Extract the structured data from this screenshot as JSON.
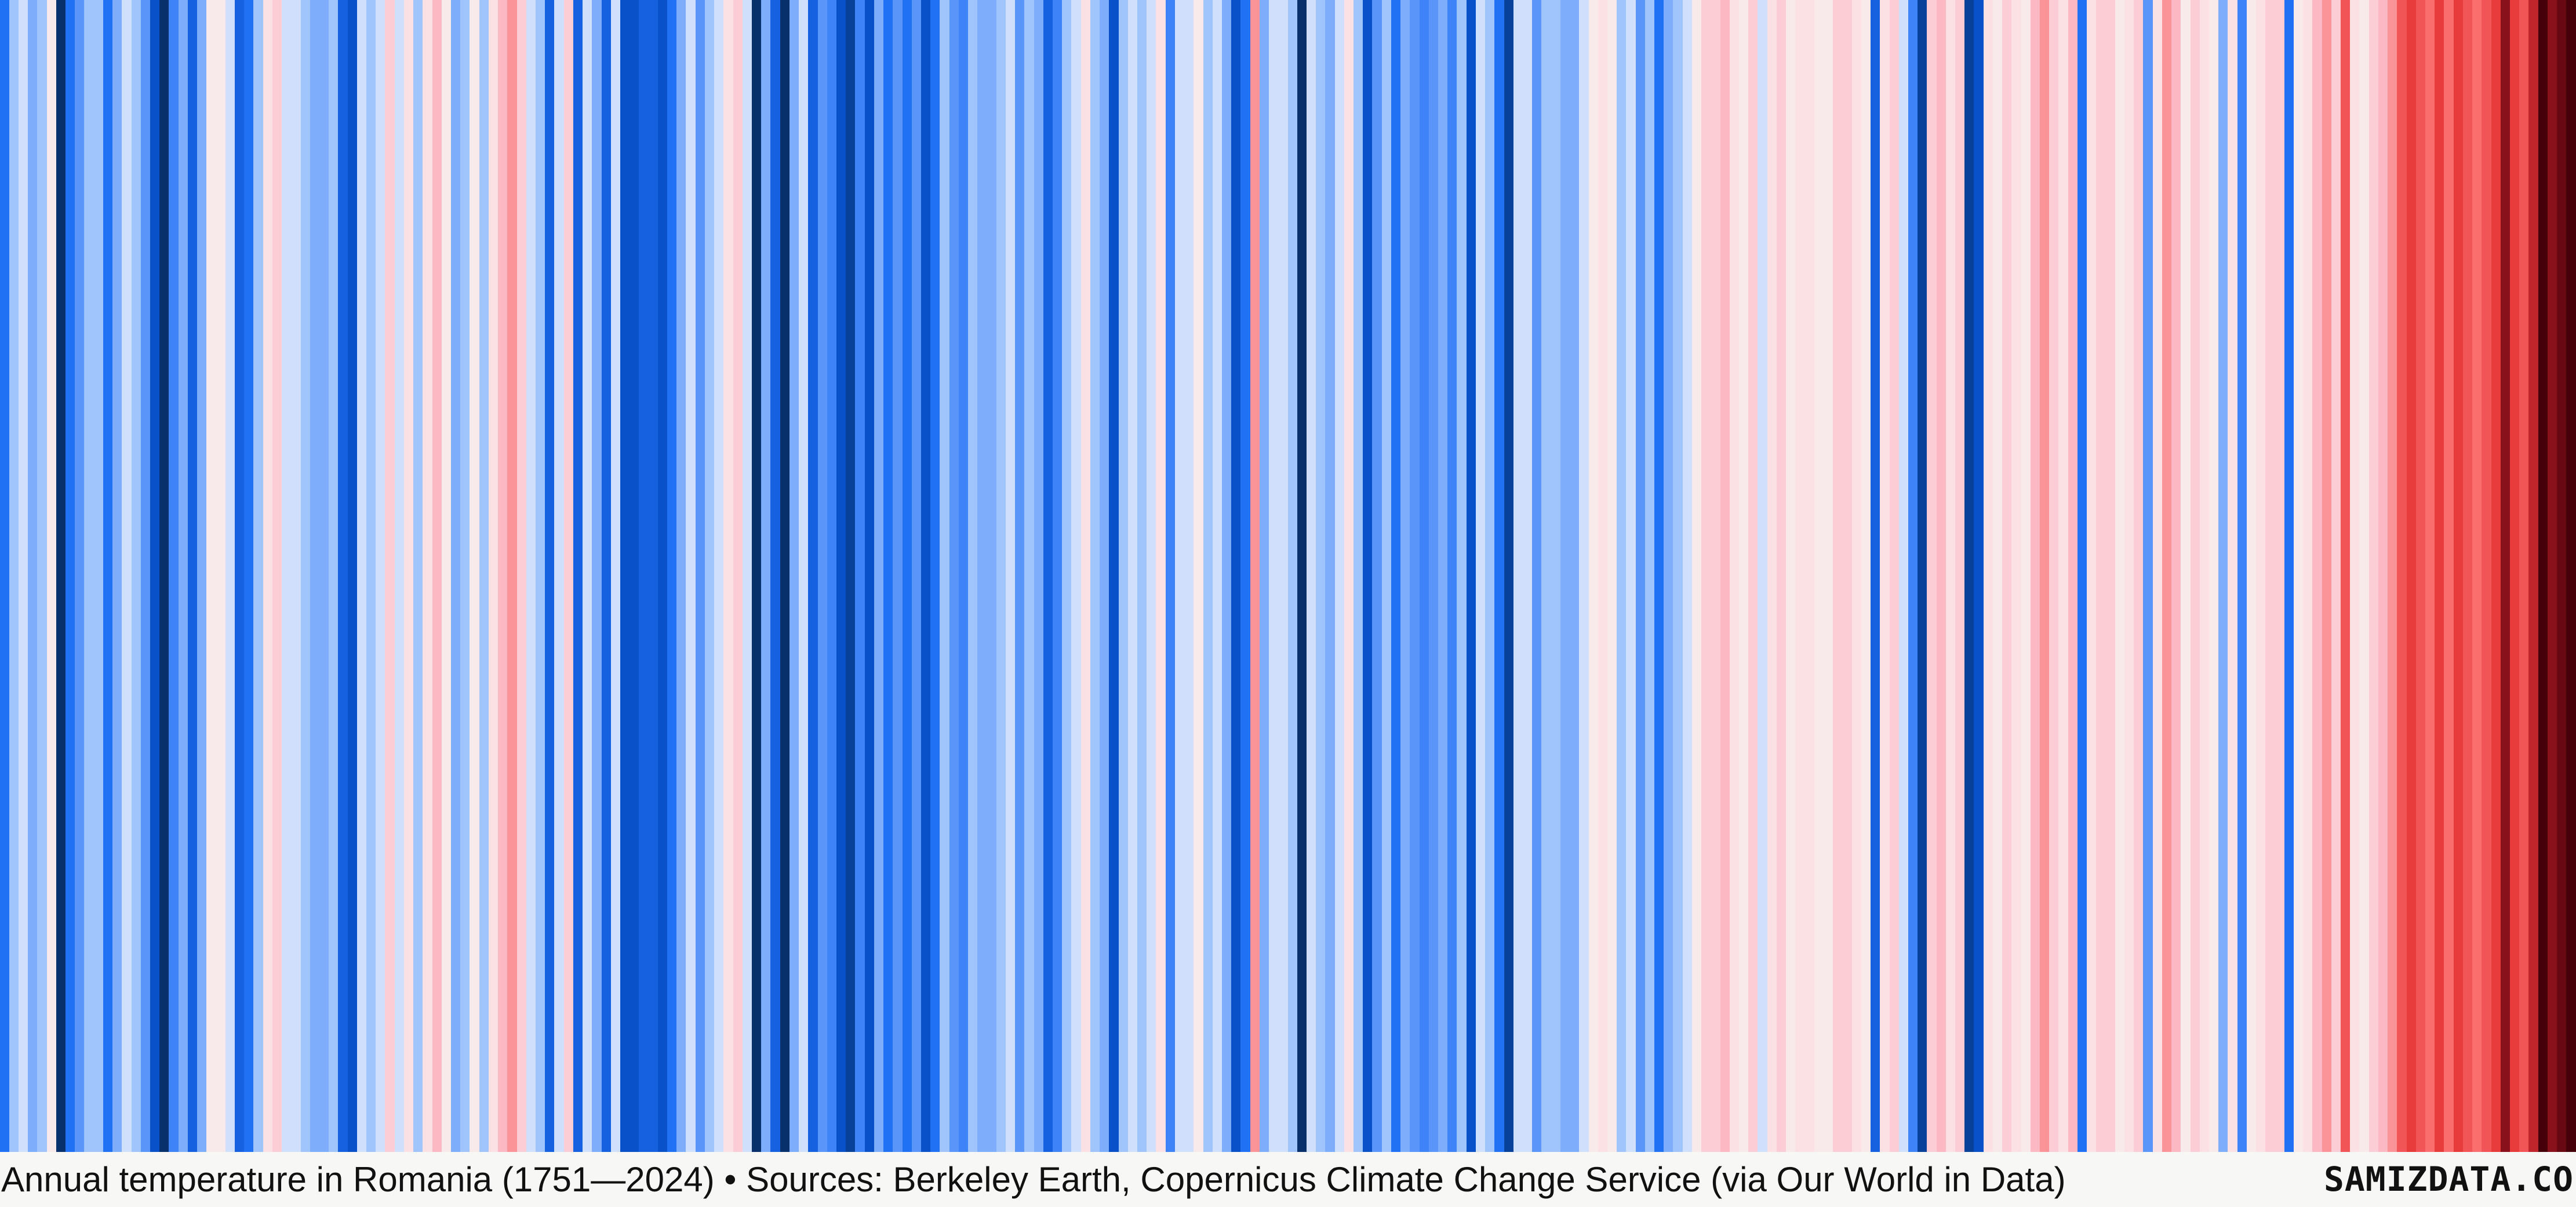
{
  "caption": {
    "text": "Annual temperature in Romania (1751—2024) • Sources: Berkeley Earth, Copernicus Climate Change Service (via Our World in Data)"
  },
  "brand": {
    "text": "SAMIZDATA.CO"
  },
  "colors": {
    "background": "#f7f7f5",
    "cold_extreme": "#08306b",
    "cold": "#2171f5",
    "neutral": "#f2f0f5",
    "warm": "#fc6b6b",
    "warm_extreme": "#67000d"
  },
  "chart_data": {
    "type": "heatmap",
    "start_year": 1751,
    "end_year": 2024,
    "value_semantics": "annual temperature anomaly, normalized from -1 (coldest) to +1 (warmest)",
    "values": [
      -0.6,
      -0.2,
      -0.1,
      -0.3,
      -0.2,
      0.05,
      -1.0,
      -0.6,
      -0.4,
      -0.2,
      -0.2,
      -0.6,
      -0.3,
      -0.1,
      -0.2,
      -0.4,
      -0.8,
      -1.0,
      -0.5,
      -0.3,
      -0.7,
      -0.3,
      0.05,
      0.05,
      -0.1,
      -0.7,
      -0.6,
      -0.2,
      0.1,
      0.2,
      -0.1,
      -0.1,
      -0.2,
      -0.3,
      -0.3,
      -0.2,
      -0.7,
      -0.8,
      -0.1,
      -0.2,
      -0.1,
      0.2,
      -0.1,
      0.1,
      -0.2,
      0.1,
      0.3,
      0.05,
      -0.3,
      -0.2,
      0.05,
      -0.2,
      0.1,
      0.3,
      0.4,
      0.2,
      -0.1,
      -0.2,
      -0.7,
      -0.1,
      0.2,
      -0.7,
      -0.1,
      -0.3,
      -0.7,
      -0.1,
      -0.8,
      -0.8,
      -0.7,
      -0.7,
      -0.8,
      -0.6,
      -0.3,
      -0.1,
      -0.4,
      -0.2,
      -0.1,
      0.1,
      0.2,
      -0.1,
      -1.0,
      -0.3,
      -0.7,
      -1.0,
      -0.3,
      -0.1,
      -0.7,
      -0.4,
      -0.5,
      -0.8,
      -0.9,
      -0.5,
      -0.8,
      -0.3,
      -0.6,
      -0.4,
      -0.6,
      -0.4,
      -0.8,
      -0.6,
      -0.2,
      -0.4,
      -0.5,
      -0.2,
      -0.3,
      -0.3,
      -0.2,
      -0.1,
      -0.4,
      -0.2,
      -0.3,
      -0.7,
      -0.5,
      -0.2,
      -0.1,
      0.1,
      -0.2,
      -0.3,
      -0.8,
      -0.2,
      -0.1,
      -0.2,
      -0.1,
      0.1,
      -0.5,
      -0.1,
      -0.1,
      0.05,
      -0.2,
      -0.1,
      -0.3,
      -0.8,
      -0.6,
      0.4,
      -0.3,
      -0.1,
      -0.1,
      -0.2,
      -1.0,
      -0.1,
      -0.2,
      -0.3,
      -0.1,
      0.1,
      -0.2,
      -0.8,
      -0.4,
      -0.2,
      -0.6,
      -0.3,
      -0.4,
      -0.5,
      -0.4,
      -0.3,
      -0.5,
      -0.2,
      -0.8,
      -0.1,
      -0.2,
      -0.6,
      -0.9,
      -0.1,
      -0.1,
      -0.4,
      -0.2,
      -0.2,
      -0.3,
      -0.3,
      -0.1,
      0.05,
      0.1,
      0.05,
      -0.2,
      -0.1,
      -0.4,
      -0.2,
      -0.6,
      -0.3,
      -0.2,
      -0.1,
      0.05,
      0.2,
      0.2,
      0.3,
      0.1,
      0.05,
      0.2,
      -0.1,
      0.1,
      0.2,
      0.05,
      0.1,
      0.1,
      0.05,
      0.05,
      0.2,
      0.2,
      0.1,
      0.05,
      -0.7,
      0.1,
      0.2,
      -0.1,
      -0.5,
      -0.9,
      0.2,
      0.3,
      0.1,
      0.2,
      -0.9,
      -0.8,
      0.1,
      0.05,
      0.2,
      0.1,
      0.05,
      0.3,
      0.4,
      0.2,
      0.1,
      0.3,
      -0.6,
      0.1,
      0.2,
      0.2,
      0.05,
      0.1,
      0.2,
      -0.4,
      0.1,
      0.4,
      0.3,
      0.05,
      0.2,
      0.1,
      0.05,
      -0.3,
      0.1,
      -0.5,
      0.05,
      0.1,
      0.2,
      0.2,
      -0.6,
      0.05,
      0.1,
      0.3,
      0.4,
      0.2,
      0.6,
      0.1,
      0.05,
      0.2,
      0.3,
      0.4,
      0.6,
      0.7,
      0.6,
      0.5,
      0.7,
      0.5,
      0.7,
      0.6,
      0.5,
      0.6,
      0.7,
      0.9,
      0.7,
      0.6,
      0.8,
      1.0,
      0.9,
      0.95,
      1.0
    ]
  }
}
